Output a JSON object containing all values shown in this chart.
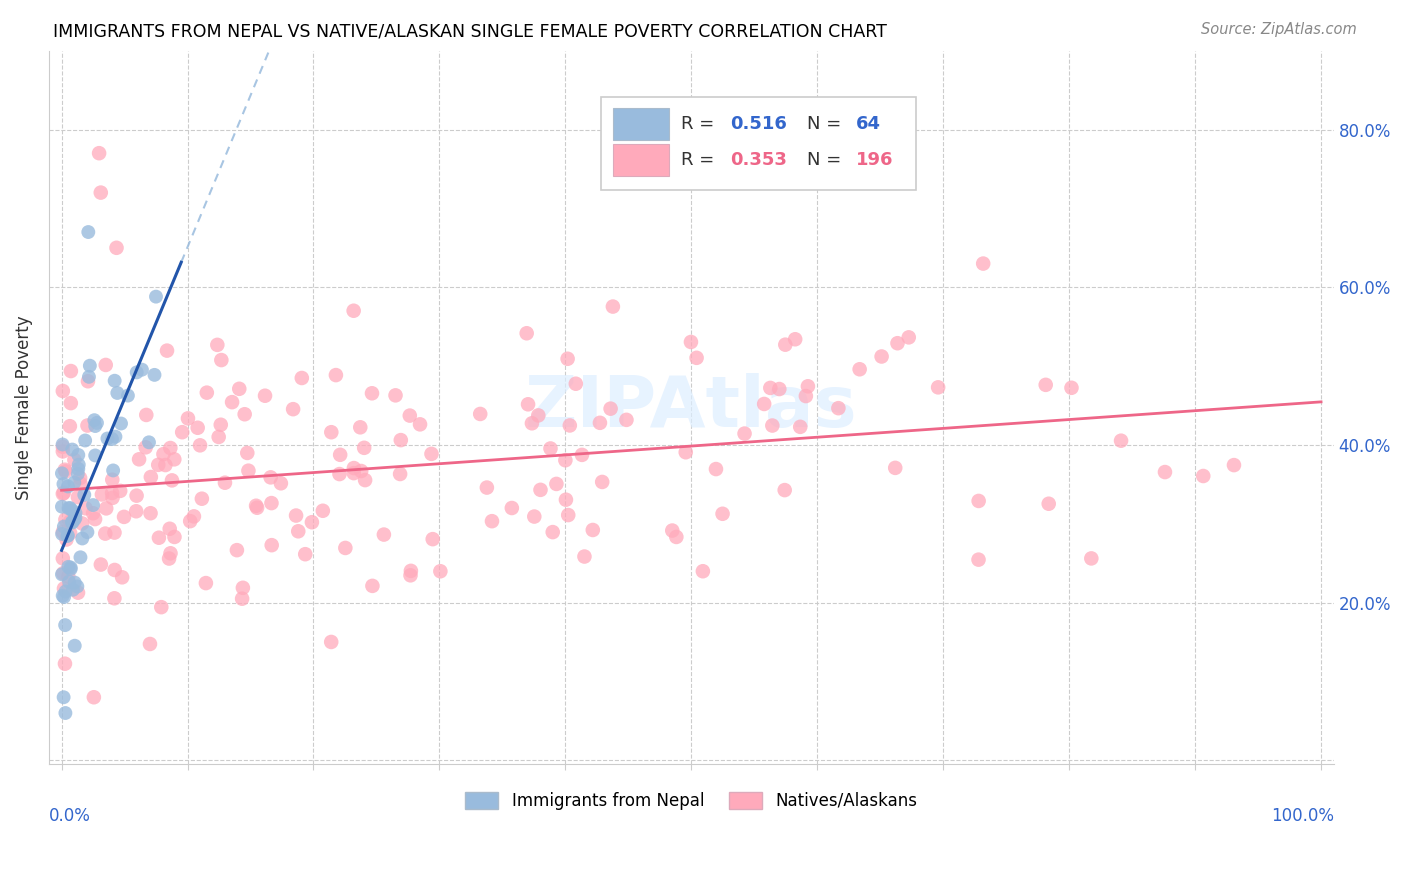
{
  "title": "IMMIGRANTS FROM NEPAL VS NATIVE/ALASKAN SINGLE FEMALE POVERTY CORRELATION CHART",
  "source": "Source: ZipAtlas.com",
  "ylabel": "Single Female Poverty",
  "blue_color": "#99BBDD",
  "pink_color": "#FFAABB",
  "blue_line_color": "#2255AA",
  "pink_line_color": "#EE6688",
  "dash_color": "#99BBDD",
  "watermark_color": "#DDEEFF",
  "legend_label1": "Immigrants from Nepal",
  "legend_label2": "Natives/Alaskans",
  "right_tick_color": "#3366CC",
  "xlim": [
    0.0,
    1.0
  ],
  "ylim": [
    0.0,
    0.9
  ],
  "yticks": [
    0.0,
    0.2,
    0.4,
    0.6,
    0.8
  ],
  "right_ytick_labels": [
    "",
    "20.0%",
    "40.0%",
    "60.0%",
    "80.0%"
  ],
  "blue_seed": 12345,
  "pink_seed": 99999
}
